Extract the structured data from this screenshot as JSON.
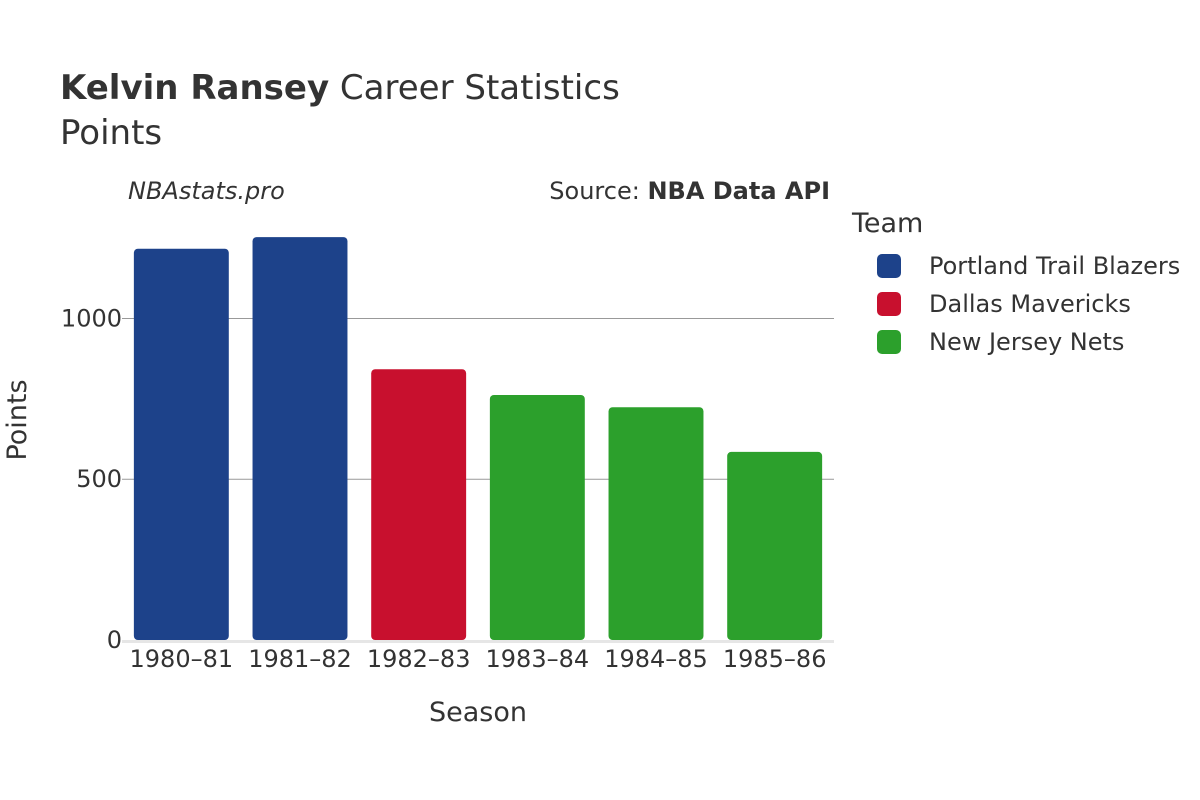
{
  "header": {
    "player": "Kelvin Ransey",
    "title_suffix": " Career Statistics",
    "subtitle": "Points"
  },
  "watermark": "NBAstats.pro",
  "source": {
    "prefix": "Source: ",
    "name": "NBA Data API"
  },
  "legend": {
    "title": "Team",
    "items": [
      {
        "label": "Portland Trail Blazers",
        "color": "#1d428a"
      },
      {
        "label": "Dallas Mavericks",
        "color": "#c8102e"
      },
      {
        "label": "New Jersey Nets",
        "color": "#2ca02c"
      }
    ]
  },
  "chart_data": {
    "type": "bar",
    "title": "Kelvin Ransey Career Statistics",
    "subtitle": "Points",
    "xlabel": "Season",
    "ylabel": "Points",
    "categories": [
      "1980–81",
      "1981–82",
      "1982–83",
      "1983–84",
      "1984–85",
      "1985–86"
    ],
    "values": [
      1217,
      1253,
      842,
      762,
      724,
      585
    ],
    "teams": [
      "Portland Trail Blazers",
      "Portland Trail Blazers",
      "Dallas Mavericks",
      "New Jersey Nets",
      "New Jersey Nets",
      "New Jersey Nets"
    ],
    "colors": [
      "#1d428a",
      "#1d428a",
      "#c8102e",
      "#2ca02c",
      "#2ca02c",
      "#2ca02c"
    ],
    "ylim": [
      0,
      1300
    ],
    "yticks": [
      0,
      500,
      1000
    ],
    "grid": true,
    "legend_position": "right"
  }
}
